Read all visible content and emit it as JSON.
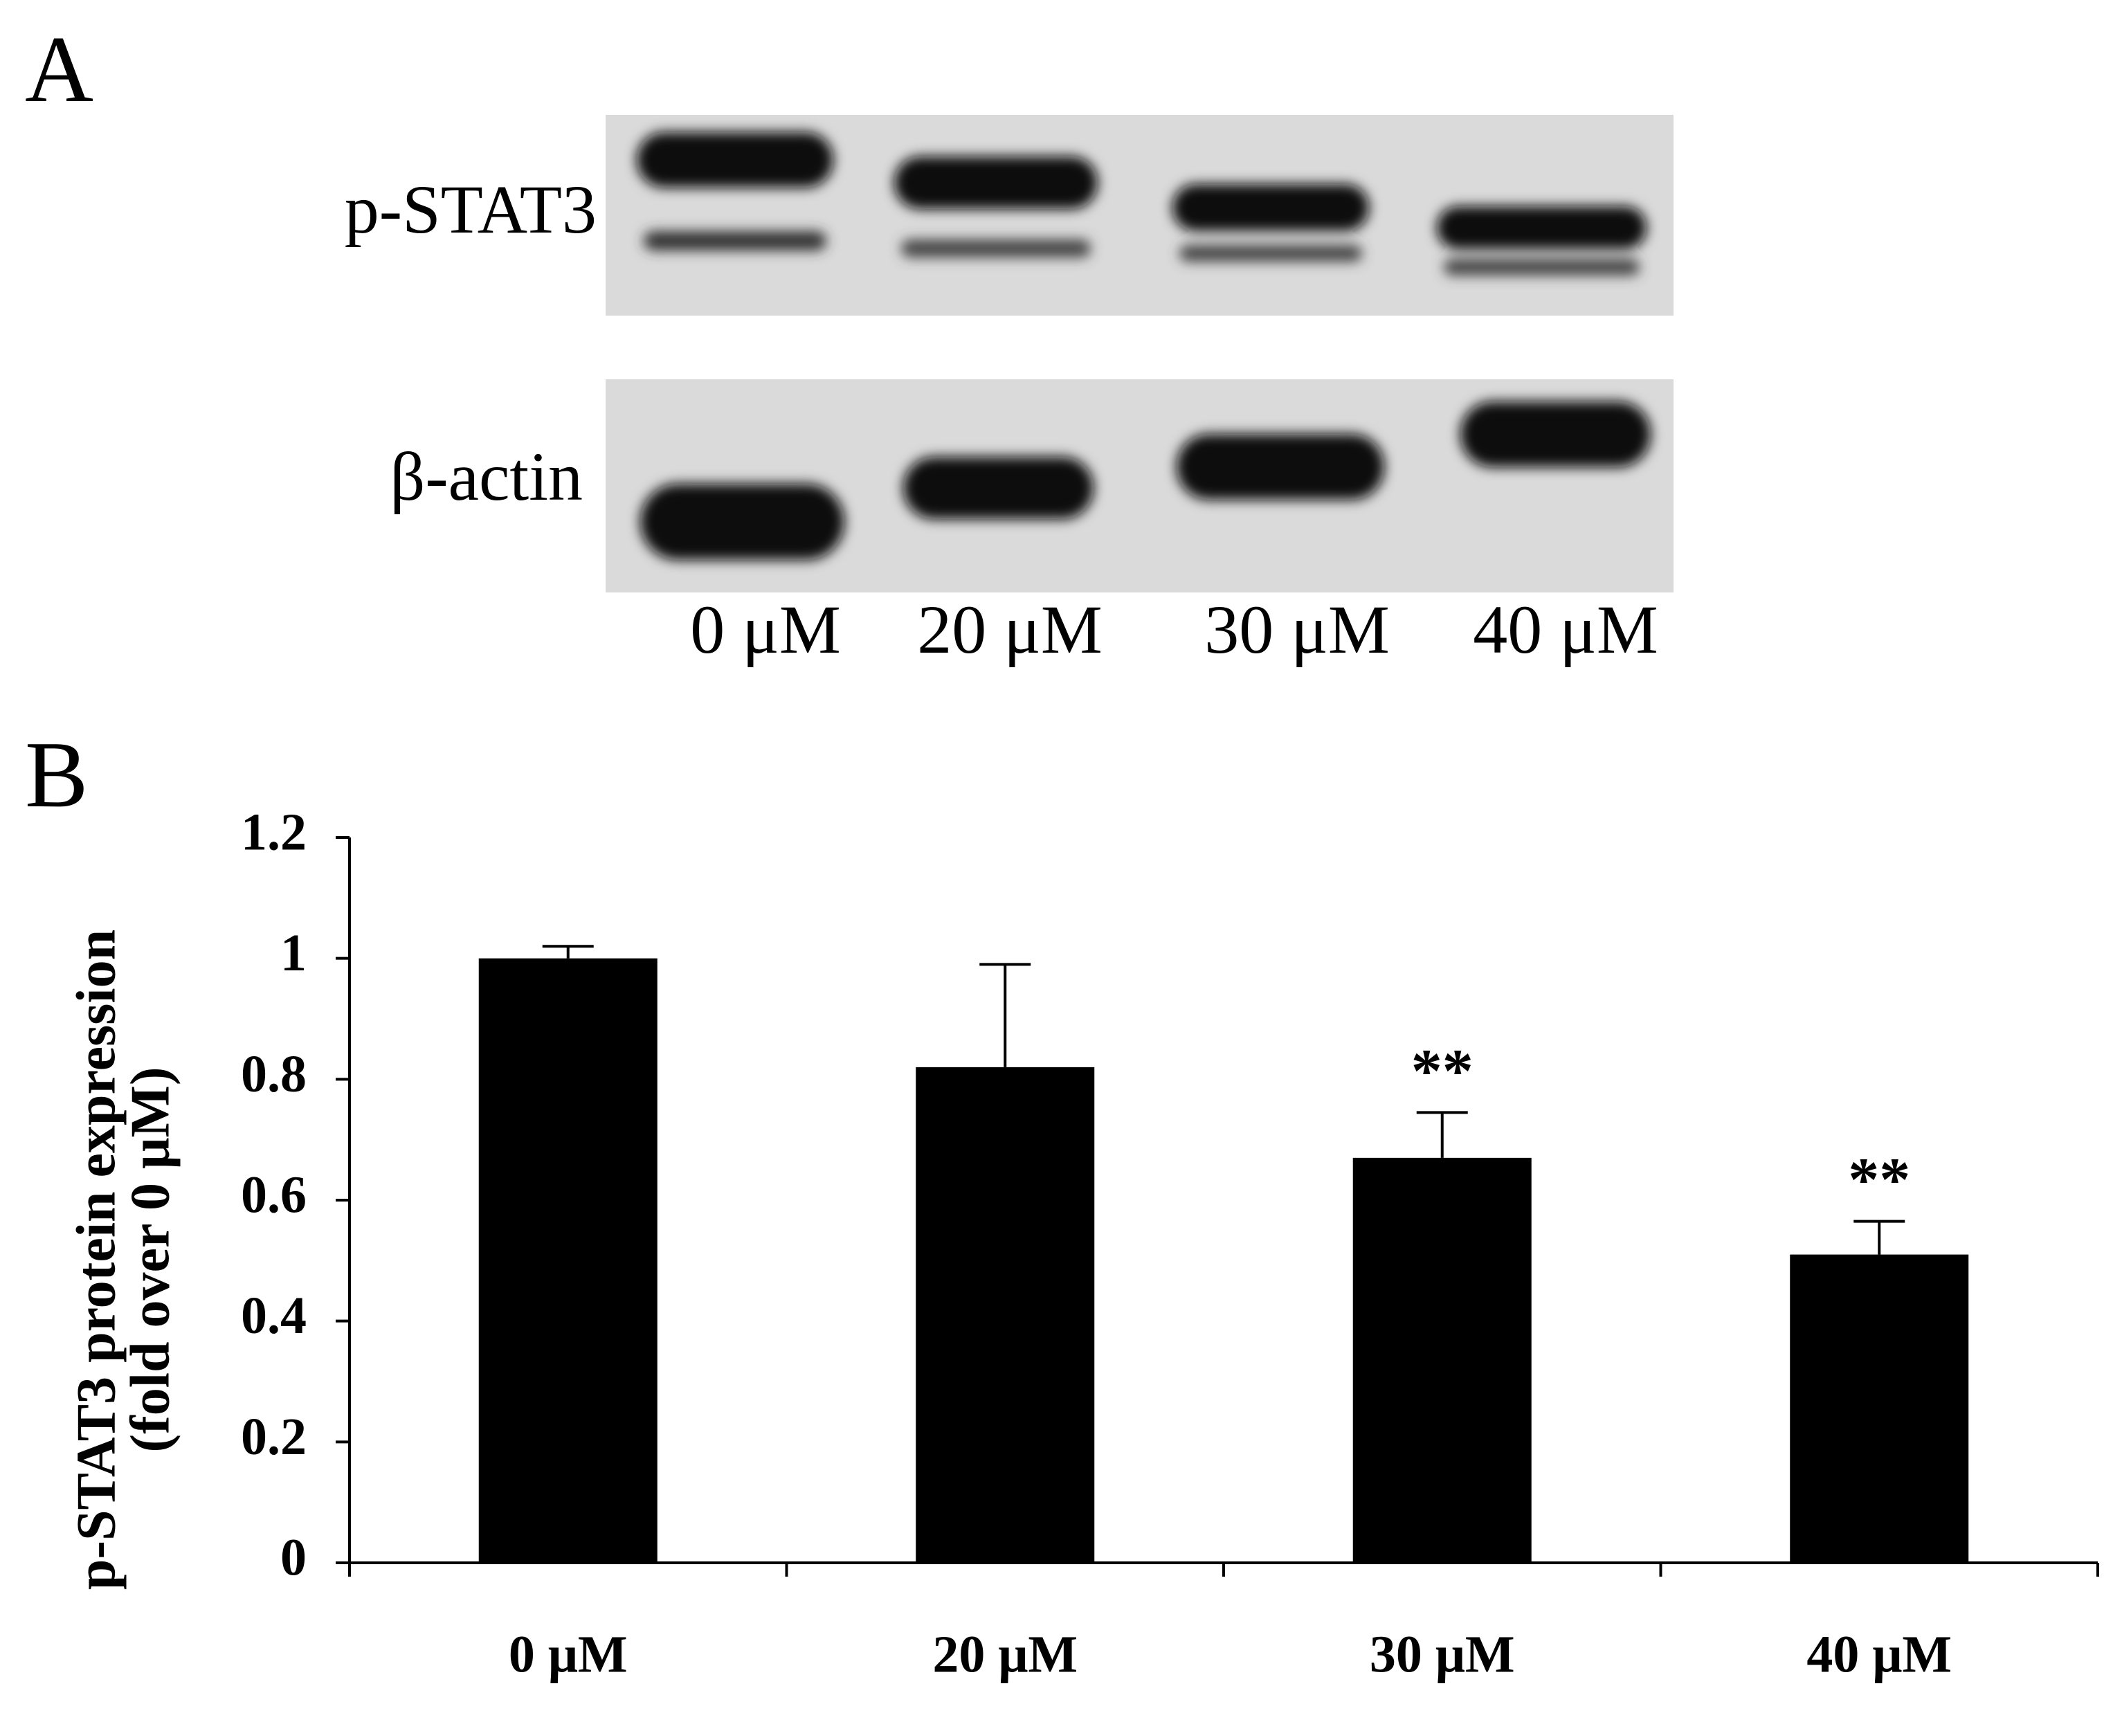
{
  "panel_a": {
    "label": "A",
    "rows": [
      "p-STAT3",
      "β-actin"
    ],
    "lanes": [
      "0 μM",
      "20 μM",
      "30 μM",
      "40 μM"
    ]
  },
  "chart_data": {
    "type": "bar",
    "panel_label": "B",
    "ylabel": [
      "p-STAT3 protein expression",
      "(fold over 0 μM)"
    ],
    "categories": [
      "0 μM",
      "20 μM",
      "30 μM",
      "40 μM"
    ],
    "values": [
      1,
      0.82,
      0.67,
      0.51
    ],
    "errors": [
      0.02,
      0.17,
      0.075,
      0.055
    ],
    "annotations": [
      null,
      null,
      "**",
      "**"
    ],
    "color": "#000000",
    "ylim": [
      0,
      1.2
    ],
    "yticks": [
      0,
      0.2,
      0.4,
      0.6,
      0.8,
      1,
      1.2
    ]
  }
}
